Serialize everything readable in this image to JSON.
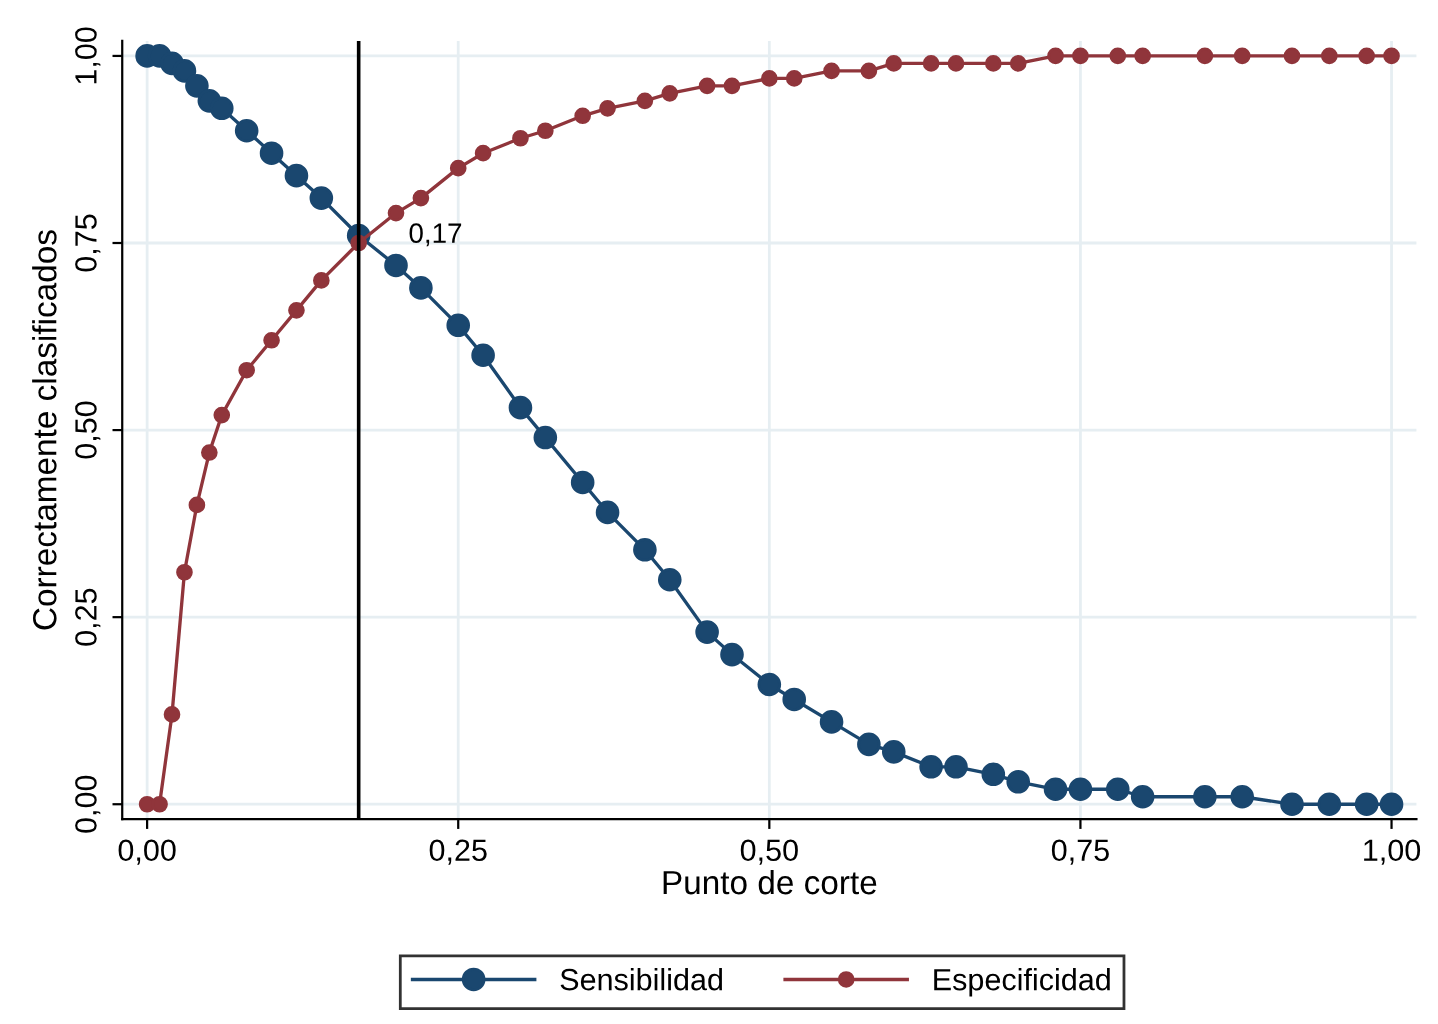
{
  "chart_data": {
    "type": "line",
    "xlabel": "Punto de corte",
    "ylabel": "Correctamente clasificados",
    "x": [
      0,
      0.01,
      0.02,
      0.03,
      0.04,
      0.05,
      0.06,
      0.08,
      0.1,
      0.12,
      0.14,
      0.17,
      0.2,
      0.22,
      0.25,
      0.27,
      0.3,
      0.32,
      0.35,
      0.37,
      0.4,
      0.42,
      0.45,
      0.47,
      0.5,
      0.52,
      0.55,
      0.58,
      0.6,
      0.63,
      0.65,
      0.68,
      0.7,
      0.73,
      0.75,
      0.78,
      0.8,
      0.85,
      0.88,
      0.92,
      0.95,
      0.98,
      1.0
    ],
    "series": [
      {
        "name": "Sensibilidad",
        "color": "#1a476f",
        "values": [
          1.0,
          1.0,
          0.99,
          0.98,
          0.96,
          0.94,
          0.93,
          0.9,
          0.87,
          0.84,
          0.81,
          0.76,
          0.72,
          0.69,
          0.64,
          0.6,
          0.53,
          0.49,
          0.43,
          0.39,
          0.34,
          0.3,
          0.23,
          0.2,
          0.16,
          0.14,
          0.11,
          0.08,
          0.07,
          0.05,
          0.05,
          0.04,
          0.03,
          0.02,
          0.02,
          0.02,
          0.01,
          0.01,
          0.01,
          0.0,
          0.0,
          0.0,
          0.0
        ]
      },
      {
        "name": "Especificidad",
        "color": "#90353b",
        "values": [
          0,
          0,
          0.12,
          0.31,
          0.4,
          0.47,
          0.52,
          0.58,
          0.62,
          0.66,
          0.7,
          0.75,
          0.79,
          0.81,
          0.85,
          0.87,
          0.89,
          0.9,
          0.92,
          0.93,
          0.94,
          0.95,
          0.96,
          0.96,
          0.97,
          0.97,
          0.98,
          0.98,
          0.99,
          0.99,
          0.99,
          0.99,
          0.99,
          1.0,
          1.0,
          1.0,
          1.0,
          1.0,
          1.0,
          1.0,
          1.0,
          1.0,
          1.0
        ]
      }
    ],
    "xlim": [
      -0.02,
      1.02
    ],
    "ylim": [
      -0.02,
      1.02
    ],
    "xticks": [
      {
        "value": 0,
        "label": "0,00"
      },
      {
        "value": 0.25,
        "label": "0,25"
      },
      {
        "value": 0.5,
        "label": "0,50"
      },
      {
        "value": 0.75,
        "label": "0,75"
      },
      {
        "value": 1,
        "label": "1,00"
      }
    ],
    "yticks": [
      {
        "value": 0,
        "label": "0,00"
      },
      {
        "value": 0.25,
        "label": "0,25"
      },
      {
        "value": 0.5,
        "label": "0,50"
      },
      {
        "value": 0.75,
        "label": "0,75"
      },
      {
        "value": 1,
        "label": "1,00"
      }
    ],
    "ref_lines": [
      {
        "axis": "x",
        "value": 0.17,
        "label": "0,17",
        "color": "#000000",
        "line_style": "solid"
      }
    ],
    "grid": true,
    "legend": "bottom",
    "marker": "circle",
    "line_style": "solid"
  }
}
